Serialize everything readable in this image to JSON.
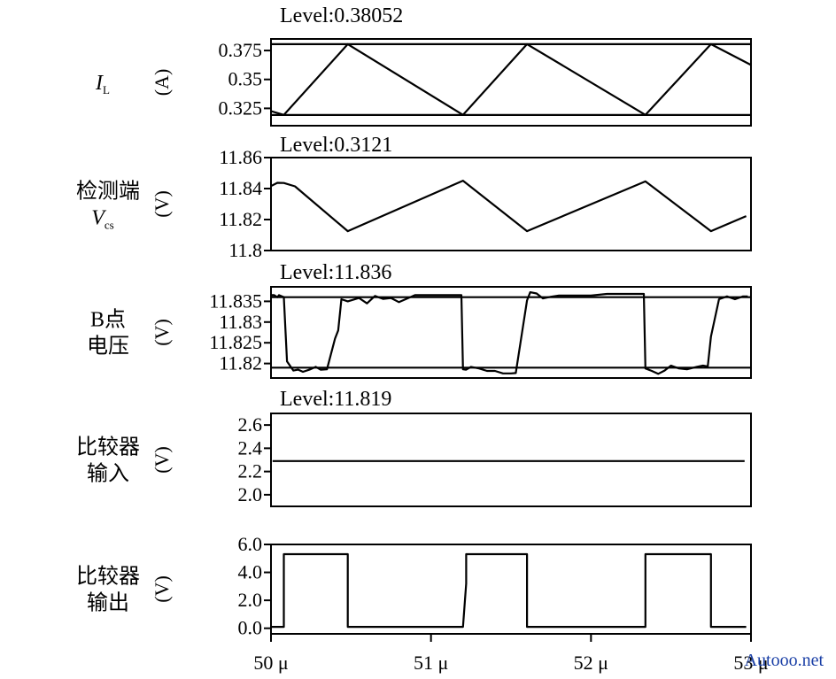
{
  "chart_data": {
    "type": "line",
    "x_unit": "μ",
    "x_ticks": [
      50,
      51,
      52,
      53
    ],
    "x_tick_labels": [
      "50 μ",
      "51 μ",
      "52 μ",
      "53 μ"
    ],
    "xlim": [
      50,
      53
    ],
    "panels": [
      {
        "id": "il",
        "level_text": "Level:0.38052",
        "label_lines": [],
        "symbol": "I",
        "subscript": "L",
        "unit": "(A)",
        "ylim": [
          0.31,
          0.385
        ],
        "yticks": [
          0.325,
          0.35,
          0.375
        ],
        "ytick_labels": [
          "0.325",
          "0.35",
          "0.375"
        ],
        "ref_lines": [
          0.38052,
          0.3193
        ],
        "series": [
          {
            "x": [
              50,
              50.08,
              50.48,
              51.2,
              51.6,
              52.34,
              52.75,
              53
            ],
            "y": [
              0.3226,
              0.3193,
              0.3805,
              0.3193,
              0.3805,
              0.3193,
              0.3805,
              0.3625
            ]
          }
        ]
      },
      {
        "id": "vcs",
        "level_text": "Level:0.3121",
        "label_lines": [
          "检测端"
        ],
        "symbol": "V",
        "subscript": "cs",
        "unit": "(V)",
        "ylim": [
          11.8,
          11.86
        ],
        "yticks": [
          11.8,
          11.82,
          11.84,
          11.86
        ],
        "ytick_labels": [
          "11.8",
          "11.82",
          "11.84",
          "11.86"
        ],
        "ref_lines": [],
        "series": [
          {
            "x": [
              50,
              50.04,
              50.08,
              50.15,
              50.48,
              51.2,
              51.6,
              52.34,
              52.75,
              52.97
            ],
            "y": [
              11.8416,
              11.8437,
              11.8436,
              11.8414,
              11.8125,
              11.8451,
              11.8125,
              11.8446,
              11.8125,
              11.8222
            ]
          }
        ]
      },
      {
        "id": "vb",
        "level_text": "Level:11.836",
        "label_lines": [
          "B点",
          "电压"
        ],
        "symbol": "",
        "subscript": "",
        "unit": "(V)",
        "ylim": [
          11.8165,
          11.8385
        ],
        "yticks": [
          11.82,
          11.825,
          11.83,
          11.835
        ],
        "ytick_labels": [
          "11.82",
          "11.825",
          "11.83",
          "11.835"
        ],
        "ref_lines": [
          11.836,
          11.819
        ],
        "series": [
          {
            "x": [
              50,
              50.02,
              50.04,
              50.05,
              50.08,
              50.1,
              50.14,
              50.17,
              50.2,
              50.24,
              50.28,
              50.31,
              50.35,
              50.4,
              50.42,
              50.44,
              50.48,
              50.55,
              50.6,
              50.65,
              50.7,
              50.75,
              50.8,
              50.9,
              51.0,
              51.08,
              51.19,
              51.2,
              51.22,
              51.25,
              51.3,
              51.35,
              51.4,
              51.45,
              51.5,
              51.53,
              51.6,
              51.62,
              51.66,
              51.7,
              51.75,
              51.8,
              51.9,
              52.0,
              52.1,
              52.2,
              52.3,
              52.33,
              52.34,
              52.38,
              52.42,
              52.46,
              52.5,
              52.55,
              52.6,
              52.66,
              52.7,
              52.73,
              52.75,
              52.8,
              52.85,
              52.9,
              52.95,
              52.98
            ],
            "y": [
              11.8365,
              11.8365,
              11.836,
              11.8365,
              11.836,
              11.8205,
              11.8183,
              11.8185,
              11.818,
              11.8185,
              11.8192,
              11.8185,
              11.8186,
              11.826,
              11.828,
              11.8355,
              11.835,
              11.8358,
              11.8345,
              11.8363,
              11.8356,
              11.8358,
              11.8348,
              11.8365,
              11.8365,
              11.8365,
              11.8365,
              11.8186,
              11.8185,
              11.8192,
              11.8188,
              11.8182,
              11.8182,
              11.8176,
              11.8176,
              11.8177,
              11.8352,
              11.8372,
              11.8369,
              11.8357,
              11.8361,
              11.8364,
              11.8364,
              11.8364,
              11.8368,
              11.8368,
              11.8368,
              11.8368,
              11.8188,
              11.8182,
              11.8175,
              11.8183,
              11.8195,
              11.8188,
              11.8186,
              11.8192,
              11.8195,
              11.8193,
              11.8265,
              11.8355,
              11.8362,
              11.8355,
              11.8362,
              11.8362
            ]
          }
        ]
      },
      {
        "id": "cmp_in",
        "level_text": "Level:11.819",
        "label_lines": [
          "比较器",
          "输入"
        ],
        "symbol": "",
        "subscript": "",
        "unit": "(V)",
        "ylim": [
          1.9,
          2.7
        ],
        "yticks": [
          2.0,
          2.2,
          2.4,
          2.6
        ],
        "ytick_labels": [
          "2.0",
          "2.2",
          "2.4",
          "2.6"
        ],
        "ref_lines": [],
        "series": [
          {
            "x": [
              50.01,
              52.96
            ],
            "y": [
              2.29,
              2.29
            ]
          }
        ]
      },
      {
        "id": "cmp_out",
        "level_text": "",
        "label_lines": [
          "比较器",
          "输出"
        ],
        "symbol": "",
        "subscript": "",
        "unit": "(V)",
        "ylim": [
          -0.4,
          6.0
        ],
        "yticks": [
          0.0,
          2.0,
          4.0,
          6.0
        ],
        "ytick_labels": [
          "0.0",
          "2.0",
          "4.0",
          "6.0"
        ],
        "ref_lines": [],
        "series": [
          {
            "x": [
              50,
              50.08,
              50.08,
              50.48,
              50.48,
              51.2,
              51.22,
              51.22,
              51.6,
              51.6,
              52.34,
              52.34,
              52.75,
              52.75,
              52.97
            ],
            "y": [
              0.1,
              0.1,
              5.3,
              5.3,
              0.1,
              0.1,
              3.2,
              5.3,
              5.3,
              0.1,
              0.1,
              5.3,
              5.3,
              0.1,
              0.1
            ]
          }
        ]
      }
    ]
  },
  "watermark": "Autooo.net",
  "colors": {
    "line": "#000000",
    "watermark": "#1a3fa6"
  }
}
